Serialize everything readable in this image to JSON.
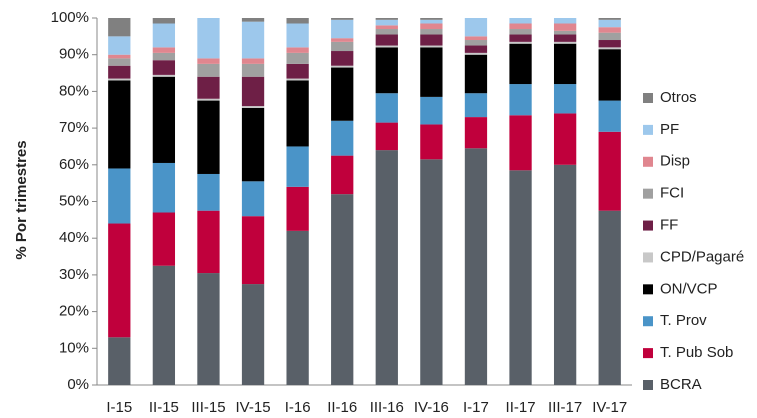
{
  "chart_data": {
    "type": "bar",
    "stacked": true,
    "ylabel": "% Por trimestres",
    "categories": [
      "I-15",
      "II-15",
      "III-15",
      "IV-15",
      "I-16",
      "II-16",
      "III-16",
      "IV-16",
      "I-17",
      "II-17",
      "III-17",
      "IV-17"
    ],
    "series": [
      {
        "name": "BCRA",
        "color": "#596068",
        "values": [
          13,
          32.5,
          30.5,
          27.5,
          42,
          52,
          64,
          61.5,
          64.5,
          58.5,
          60,
          47.5
        ]
      },
      {
        "name": "T. Pub Sob",
        "color": "#c0003c",
        "values": [
          31,
          14.5,
          17,
          18.5,
          12,
          10.5,
          7.5,
          9.5,
          8.5,
          15,
          14,
          21.5
        ]
      },
      {
        "name": "T. Prov",
        "color": "#4a94c8",
        "values": [
          15,
          13.5,
          10,
          9.5,
          11,
          9.5,
          8,
          7.5,
          6.5,
          8.5,
          8,
          8.5
        ]
      },
      {
        "name": "ON/VCP",
        "color": "#000000",
        "values": [
          24,
          23.5,
          20,
          20,
          18,
          14.5,
          12.5,
          13.5,
          10.5,
          11,
          11,
          14
        ]
      },
      {
        "name": "CPD/Pagaré",
        "color": "#c8c8c8",
        "values": [
          0.5,
          0.5,
          0.5,
          0.5,
          0.5,
          0.5,
          0.5,
          0.5,
          0.5,
          0.5,
          0.5,
          0.5
        ]
      },
      {
        "name": "FF",
        "color": "#6e1f46",
        "values": [
          3.5,
          4,
          6,
          8,
          4,
          4,
          3,
          3,
          2,
          2,
          2,
          2
        ]
      },
      {
        "name": "FCI",
        "color": "#a0a0a0",
        "values": [
          2,
          2,
          3.5,
          3.5,
          3,
          2.5,
          1.5,
          1.5,
          1.5,
          1.5,
          1,
          2
        ]
      },
      {
        "name": "Disp",
        "color": "#e0868f",
        "values": [
          1,
          1.5,
          1.5,
          1.5,
          1.5,
          1,
          1,
          1.5,
          1,
          1.5,
          2,
          1.5
        ]
      },
      {
        "name": "PF",
        "color": "#9dc8ec",
        "values": [
          5,
          6.5,
          11,
          10,
          6.5,
          5,
          1.5,
          1,
          5,
          1.5,
          1.5,
          2
        ]
      },
      {
        "name": "Otros",
        "color": "#808080",
        "values": [
          5,
          1.5,
          0,
          1,
          1.5,
          0.5,
          0.5,
          0.5,
          0,
          0,
          0,
          0.5
        ]
      }
    ],
    "ylim": [
      0,
      100
    ],
    "yticks": [
      {
        "value": 0,
        "label": "0%"
      },
      {
        "value": 10,
        "label": "10%"
      },
      {
        "value": 20,
        "label": "20%"
      },
      {
        "value": 30,
        "label": "30%"
      },
      {
        "value": 40,
        "label": "40%"
      },
      {
        "value": 50,
        "label": "50%"
      },
      {
        "value": 60,
        "label": "60%"
      },
      {
        "value": 70,
        "label": "70%"
      },
      {
        "value": 80,
        "label": "80%"
      },
      {
        "value": 90,
        "label": "90%"
      },
      {
        "value": 100,
        "label": "100%"
      }
    ],
    "grid": false,
    "legend": "right"
  }
}
